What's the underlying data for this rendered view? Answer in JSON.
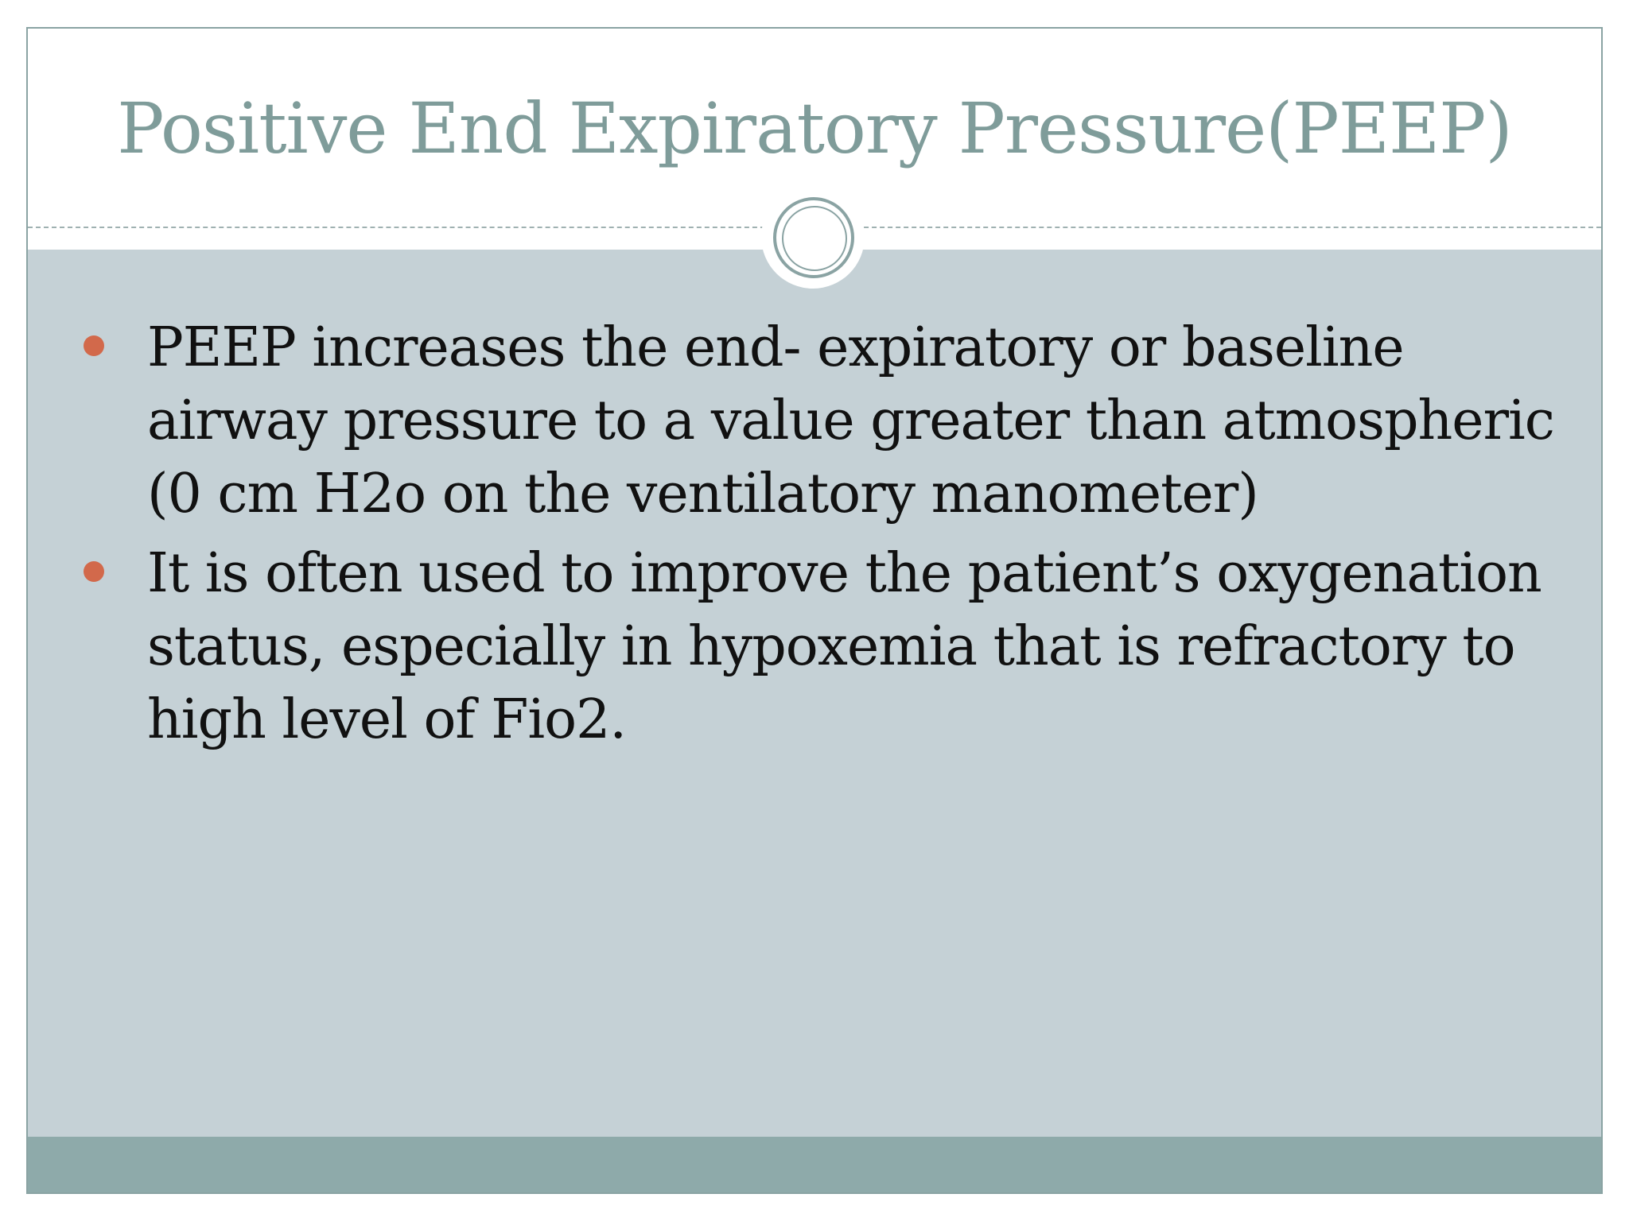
{
  "slide": {
    "title": "Positive End Expiratory Pressure(PEEP)",
    "bullets": [
      {
        "text": "PEEP increases the end- expiratory or baseline airway pressure to a value greater than atmospheric (0 cm H2o on the ventilatory manometer)"
      },
      {
        "text": "It is often used to improve the patient’s oxygenation status, especially in hypoxemia that is refractory to high level of Fio2."
      }
    ]
  },
  "colors": {
    "title": "#7f9c9a",
    "content_background": "#c5d1d6",
    "footer_band": "#8eaaaa",
    "bullet_marker": "#d2694b",
    "border": "#8aa3a3"
  },
  "icons": {
    "title_ornament": "double-ring-icon",
    "bullet_marker": "bullet-dot-icon"
  }
}
